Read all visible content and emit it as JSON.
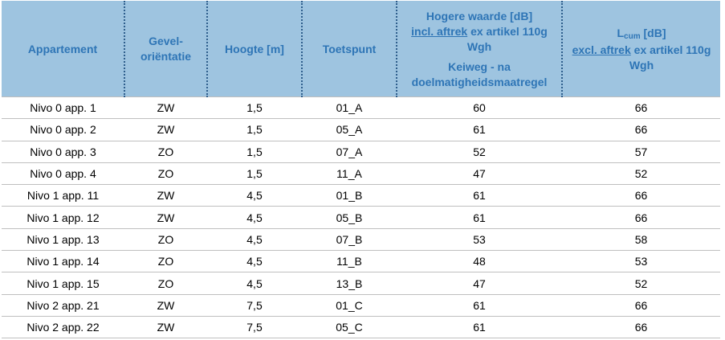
{
  "table": {
    "header": {
      "appartement": "Appartement",
      "gevel": [
        "Gevel-",
        "oriëntatie"
      ],
      "hoogte": "Hoogte [m]",
      "toetspunt": "Toetspunt",
      "hogere": {
        "line1": "Hogere waarde [dB]",
        "underlined": "incl. aftrek",
        "rest": "ex artikel 110g Wgh",
        "line3": "Keiweg - na doelmatigheidsmaatregel"
      },
      "lcum": {
        "symbol": "L",
        "subscript": "cum",
        "unit": "[dB]",
        "underlined": "excl. aftrek",
        "rest": "ex artikel 110g Wgh"
      }
    },
    "rows": [
      [
        "Nivo 0 app. 1",
        "ZW",
        "1,5",
        "01_A",
        "60",
        "66"
      ],
      [
        "Nivo 0 app. 2",
        "ZW",
        "1,5",
        "05_A",
        "61",
        "66"
      ],
      [
        "Nivo 0 app. 3",
        "ZO",
        "1,5",
        "07_A",
        "52",
        "57"
      ],
      [
        "Nivo 0 app. 4",
        "ZO",
        "1,5",
        "11_A",
        "47",
        "52"
      ],
      [
        "Nivo 1 app. 11",
        "ZW",
        "4,5",
        "01_B",
        "61",
        "66"
      ],
      [
        "Nivo 1 app. 12",
        "ZW",
        "4,5",
        "05_B",
        "61",
        "66"
      ],
      [
        "Nivo 1 app. 13",
        "ZO",
        "4,5",
        "07_B",
        "53",
        "58"
      ],
      [
        "Nivo 1 app. 14",
        "ZO",
        "4,5",
        "11_B",
        "48",
        "53"
      ],
      [
        "Nivo 1 app. 15",
        "ZO",
        "4,5",
        "13_B",
        "47",
        "52"
      ],
      [
        "Nivo 2 app. 21",
        "ZW",
        "7,5",
        "01_C",
        "61",
        "66"
      ],
      [
        "Nivo 2 app. 22",
        "ZW",
        "7,5",
        "05_C",
        "61",
        "66"
      ]
    ]
  }
}
